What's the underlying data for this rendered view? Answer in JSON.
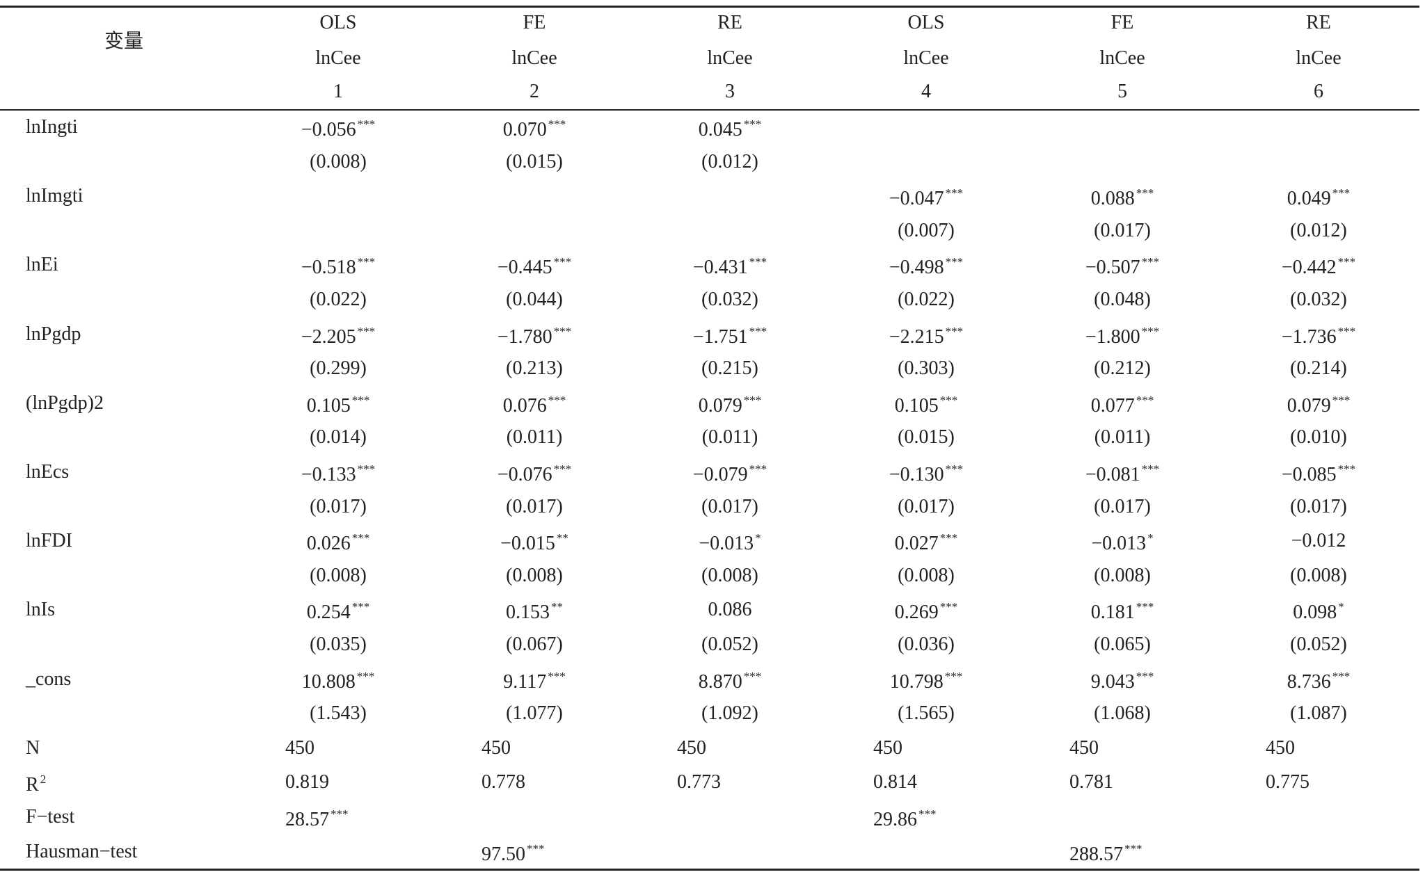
{
  "header": {
    "label": "变量",
    "models": [
      "OLS",
      "FE",
      "RE",
      "OLS",
      "FE",
      "RE"
    ],
    "depvar": [
      "lnCee",
      "lnCee",
      "lnCee",
      "lnCee",
      "lnCee",
      "lnCee"
    ],
    "numbers": [
      "1",
      "2",
      "3",
      "4",
      "5",
      "6"
    ]
  },
  "rows": [
    {
      "label": "lnIngti",
      "cells": [
        {
          "coef": "−0.056",
          "stars": "***",
          "se": "(0.008)"
        },
        {
          "coef": "0.070",
          "stars": "***",
          "se": "(0.015)"
        },
        {
          "coef": "0.045",
          "stars": "***",
          "se": "(0.012)"
        },
        null,
        null,
        null
      ]
    },
    {
      "label": "lnImgti",
      "cells": [
        null,
        null,
        null,
        {
          "coef": "−0.047",
          "stars": "***",
          "se": "(0.007)"
        },
        {
          "coef": "0.088",
          "stars": "***",
          "se": "(0.017)"
        },
        {
          "coef": "0.049",
          "stars": "***",
          "se": "(0.012)"
        }
      ]
    },
    {
      "label": "lnEi",
      "cells": [
        {
          "coef": "−0.518",
          "stars": "***",
          "se": "(0.022)"
        },
        {
          "coef": "−0.445",
          "stars": "***",
          "se": "(0.044)"
        },
        {
          "coef": "−0.431",
          "stars": "***",
          "se": "(0.032)"
        },
        {
          "coef": "−0.498",
          "stars": "***",
          "se": "(0.022)"
        },
        {
          "coef": "−0.507",
          "stars": "***",
          "se": "(0.048)"
        },
        {
          "coef": "−0.442",
          "stars": "***",
          "se": "(0.032)"
        }
      ]
    },
    {
      "label": "lnPgdp",
      "cells": [
        {
          "coef": "−2.205",
          "stars": "***",
          "se": "(0.299)"
        },
        {
          "coef": "−1.780",
          "stars": "***",
          "se": "(0.213)"
        },
        {
          "coef": "−1.751",
          "stars": "***",
          "se": "(0.215)"
        },
        {
          "coef": "−2.215",
          "stars": "***",
          "se": "(0.303)"
        },
        {
          "coef": "−1.800",
          "stars": "***",
          "se": "(0.212)"
        },
        {
          "coef": "−1.736",
          "stars": "***",
          "se": "(0.214)"
        }
      ]
    },
    {
      "label": "(lnPgdp)2",
      "cells": [
        {
          "coef": "0.105",
          "stars": "***",
          "se": "(0.014)"
        },
        {
          "coef": "0.076",
          "stars": "***",
          "se": "(0.011)"
        },
        {
          "coef": "0.079",
          "stars": "***",
          "se": "(0.011)"
        },
        {
          "coef": "0.105",
          "stars": "***",
          "se": "(0.015)"
        },
        {
          "coef": "0.077",
          "stars": "***",
          "se": "(0.011)"
        },
        {
          "coef": "0.079",
          "stars": "***",
          "se": "(0.010)"
        }
      ]
    },
    {
      "label": "lnEcs",
      "cells": [
        {
          "coef": "−0.133",
          "stars": "***",
          "se": "(0.017)"
        },
        {
          "coef": "−0.076",
          "stars": "***",
          "se": "(0.017)"
        },
        {
          "coef": "−0.079",
          "stars": "***",
          "se": "(0.017)"
        },
        {
          "coef": "−0.130",
          "stars": "***",
          "se": "(0.017)"
        },
        {
          "coef": "−0.081",
          "stars": "***",
          "se": "(0.017)"
        },
        {
          "coef": "−0.085",
          "stars": "***",
          "se": "(0.017)"
        }
      ]
    },
    {
      "label": "lnFDI",
      "cells": [
        {
          "coef": "0.026",
          "stars": "***",
          "se": "(0.008)"
        },
        {
          "coef": "−0.015",
          "stars": "**",
          "se": "(0.008)"
        },
        {
          "coef": "−0.013",
          "stars": "*",
          "se": "(0.008)"
        },
        {
          "coef": "0.027",
          "stars": "***",
          "se": "(0.008)"
        },
        {
          "coef": "−0.013",
          "stars": "*",
          "se": "(0.008)"
        },
        {
          "coef": "−0.012",
          "stars": null,
          "se": "(0.008)"
        }
      ]
    },
    {
      "label": "lnIs",
      "cells": [
        {
          "coef": "0.254",
          "stars": "***",
          "se": "(0.035)"
        },
        {
          "coef": "0.153",
          "stars": "**",
          "se": "(0.067)"
        },
        {
          "coef": "0.086",
          "stars": null,
          "se": "(0.052)"
        },
        {
          "coef": "0.269",
          "stars": "***",
          "se": "(0.036)"
        },
        {
          "coef": "0.181",
          "stars": "***",
          "se": "(0.065)"
        },
        {
          "coef": "0.098",
          "stars": "*",
          "se": "(0.052)"
        }
      ]
    },
    {
      "label": "_cons",
      "cells": [
        {
          "coef": "10.808",
          "stars": "***",
          "se": "(1.543)"
        },
        {
          "coef": "9.117",
          "stars": "***",
          "se": "(1.077)"
        },
        {
          "coef": "8.870",
          "stars": "***",
          "se": "(1.092)"
        },
        {
          "coef": "10.798",
          "stars": "***",
          "se": "(1.565)"
        },
        {
          "coef": "9.043",
          "stars": "***",
          "se": "(1.068)"
        },
        {
          "coef": "8.736",
          "stars": "***",
          "se": "(1.087)"
        }
      ]
    }
  ],
  "stats": [
    {
      "label": "N",
      "sup": null,
      "cells": [
        {
          "value": "450",
          "stars": null
        },
        {
          "value": "450",
          "stars": null
        },
        {
          "value": "450",
          "stars": null
        },
        {
          "value": "450",
          "stars": null
        },
        {
          "value": "450",
          "stars": null
        },
        {
          "value": "450",
          "stars": null
        }
      ]
    },
    {
      "label": "R",
      "sup": "2",
      "cells": [
        {
          "value": "0.819",
          "stars": null
        },
        {
          "value": "0.778",
          "stars": null
        },
        {
          "value": "0.773",
          "stars": null
        },
        {
          "value": "0.814",
          "stars": null
        },
        {
          "value": "0.781",
          "stars": null
        },
        {
          "value": "0.775",
          "stars": null
        }
      ]
    },
    {
      "label": "F−test",
      "sup": null,
      "cells": [
        {
          "value": "28.57",
          "stars": "***"
        },
        null,
        null,
        {
          "value": "29.86",
          "stars": "***"
        },
        null,
        null
      ]
    },
    {
      "label": "Hausman−test",
      "sup": null,
      "cells": [
        null,
        {
          "value": "97.50",
          "stars": "***"
        },
        null,
        null,
        {
          "value": "288.57",
          "stars": "***"
        },
        null
      ]
    }
  ]
}
